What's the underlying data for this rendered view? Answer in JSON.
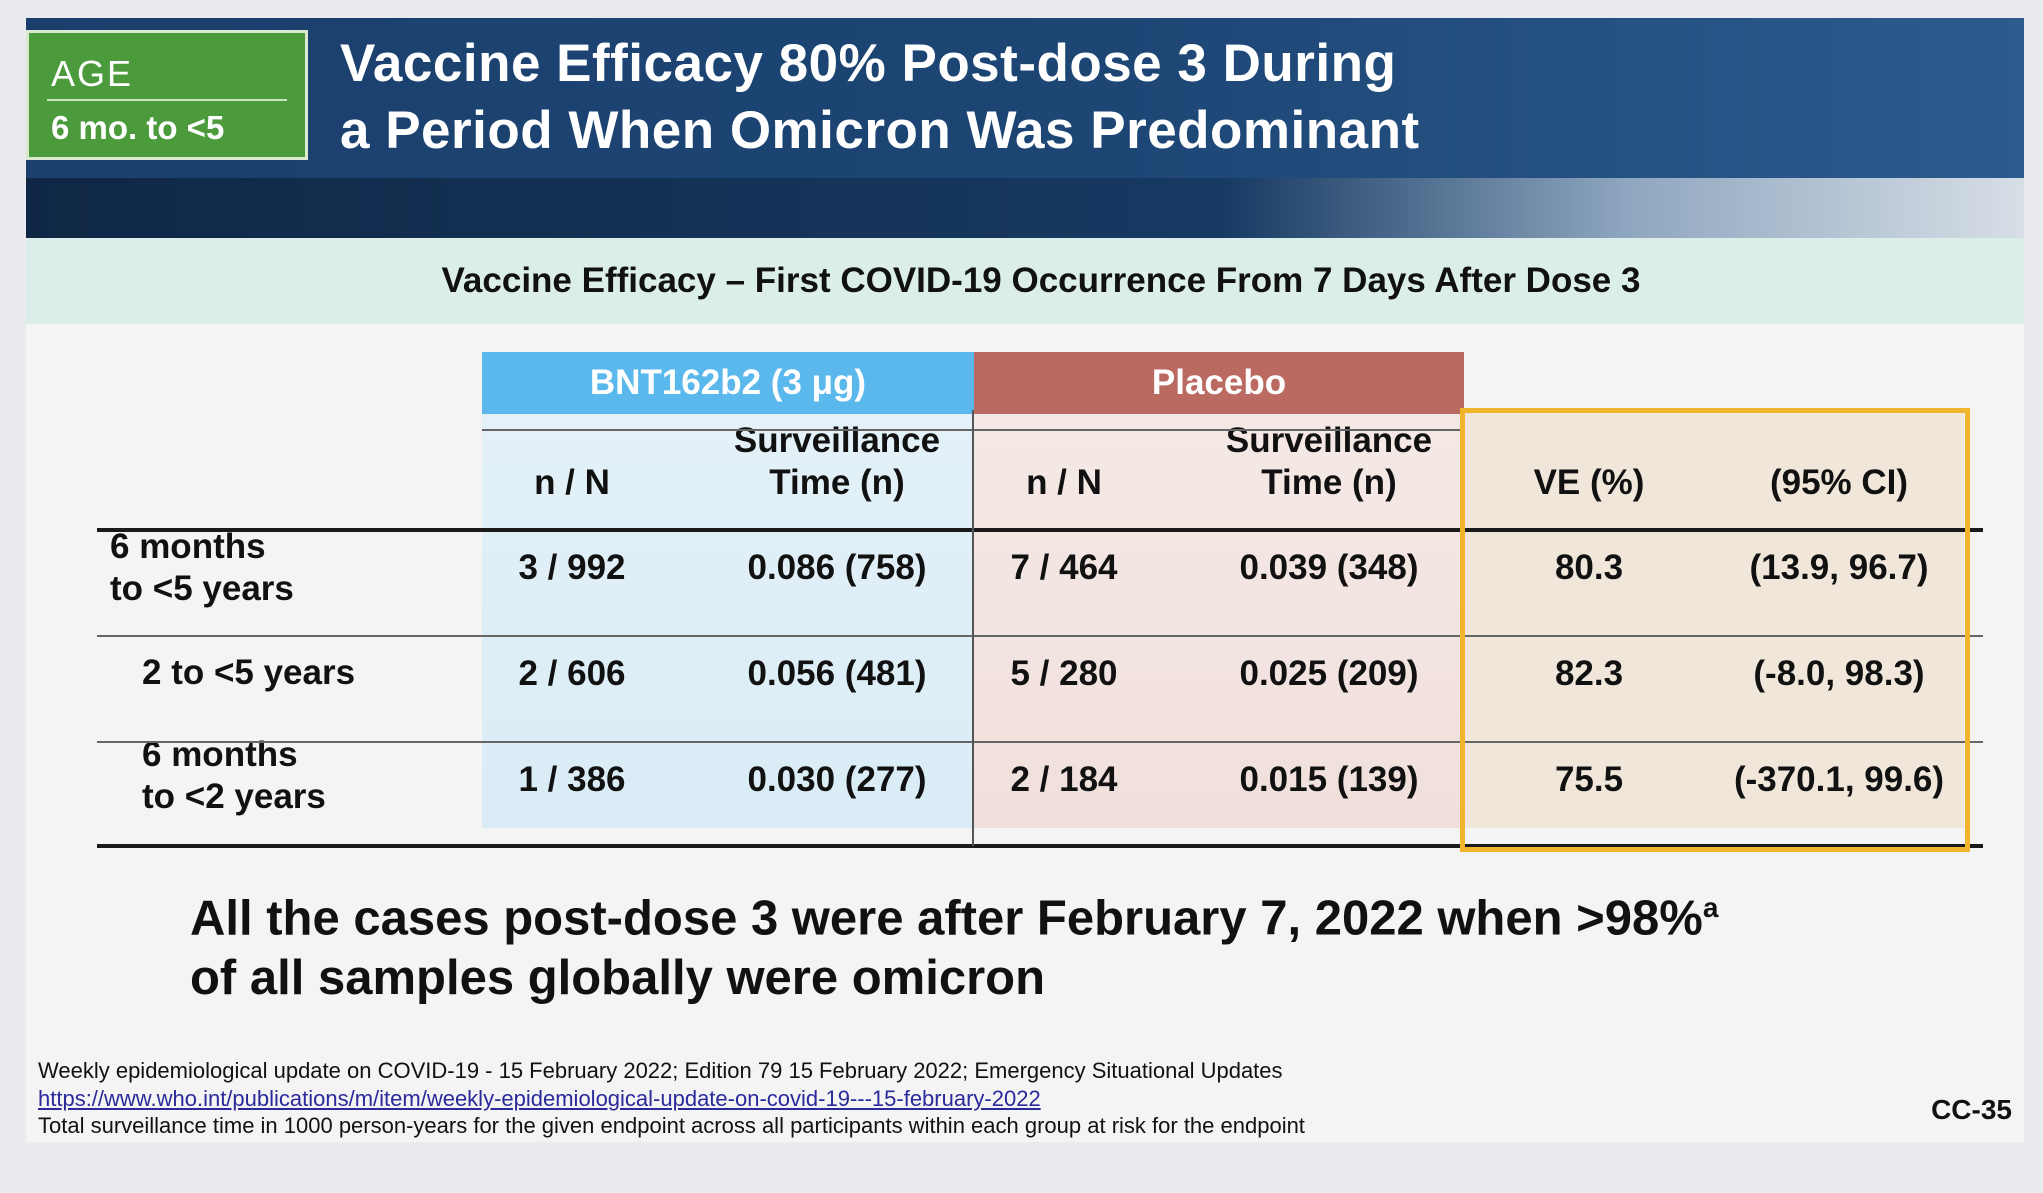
{
  "header": {
    "age_label": "AGE",
    "age_range": "6 mo. to <5",
    "title_line1": "Vaccine Efficacy 80% Post-dose 3 During",
    "title_line2": "a Period When Omicron Was Predominant"
  },
  "subtitle": "Vaccine Efficacy – First COVID-19 Occurrence From 7 Days After Dose 3",
  "table": {
    "group_vaccine": "BNT162b2 (3 μg)",
    "group_placebo": "Placebo",
    "col_nN": "n / N",
    "col_surv_line1": "Surveillance",
    "col_surv_line2": "Time (n)",
    "col_ve": "VE (%)",
    "col_ci": "(95% CI)",
    "rows": [
      {
        "label_line1": "6 months",
        "label_line2": "to <5 years",
        "vac_nN": "3 / 992",
        "vac_surv": "0.086 (758)",
        "pla_nN": "7 / 464",
        "pla_surv": "0.039 (348)",
        "ve": "80.3",
        "ci": "(13.9, 96.7)"
      },
      {
        "label_line1": "2 to <5 years",
        "label_line2": "",
        "vac_nN": "2 / 606",
        "vac_surv": "0.056 (481)",
        "pla_nN": "5 / 280",
        "pla_surv": "0.025 (209)",
        "ve": "82.3",
        "ci": "(-8.0, 98.3)"
      },
      {
        "label_line1": "6 months",
        "label_line2": "to <2 years",
        "vac_nN": "1 / 386",
        "vac_surv": "0.030 (277)",
        "pla_nN": "2 / 184",
        "pla_surv": "0.015 (139)",
        "ve": "75.5",
        "ci": "(-370.1, 99.6)"
      }
    ]
  },
  "note": {
    "line1": "All the cases post-dose 3 were after February 7, 2022 when >98%",
    "sup": "a",
    "line2": "of all samples globally were omicron"
  },
  "footer": {
    "line1": "Weekly epidemiological update on COVID-19 - 15 February 2022; Edition 79 15 February 2022; Emergency Situational Updates",
    "link": "https://www.who.int/publications/m/item/weekly-epidemiological-update-on-covid-19---15-february-2022",
    "line3": "Total surveillance time in 1000 person-years for the given endpoint across all participants within each group at risk for the endpoint"
  },
  "slide_number": "CC-35",
  "colors": {
    "header_blue": "#1d4675",
    "age_green": "#4b9b3c",
    "vaccine_blue": "#5bb8ec",
    "placebo_red": "#bb6a62",
    "ve_gold": "#f0b52d"
  }
}
